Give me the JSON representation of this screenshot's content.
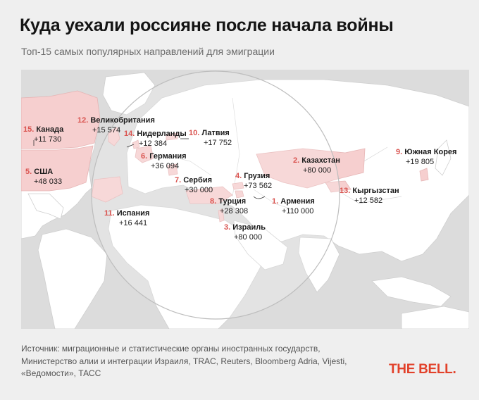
{
  "header": {
    "title": "Куда уехали россияне после начала войны",
    "subtitle": "Топ-15 самых популярных направлений для эмиграции"
  },
  "destinations": [
    {
      "rank": "15.",
      "name": "Канада",
      "count": "+11 730"
    },
    {
      "rank": "12.",
      "name": "Великобритания",
      "count": "+15 574"
    },
    {
      "rank": "14.",
      "name": "Нидерланды",
      "count": "+12 384"
    },
    {
      "rank": "10.",
      "name": "Латвия",
      "count": "+17 752"
    },
    {
      "rank": "6.",
      "name": "Германия",
      "count": "+36 094"
    },
    {
      "rank": "5.",
      "name": "США",
      "count": "+48 033"
    },
    {
      "rank": "7.",
      "name": "Сербия",
      "count": "+30 000"
    },
    {
      "rank": "4.",
      "name": "Грузия",
      "count": "+73 562"
    },
    {
      "rank": "2.",
      "name": "Казахстан",
      "count": "+80 000"
    },
    {
      "rank": "9.",
      "name": "Южная Корея",
      "count": "+19 805"
    },
    {
      "rank": "13.",
      "name": "Кыргызстан",
      "count": "+12 582"
    },
    {
      "rank": "8.",
      "name": "Турция",
      "count": "+28 308"
    },
    {
      "rank": "1.",
      "name": "Армения",
      "count": "+110 000"
    },
    {
      "rank": "11.",
      "name": "Испания",
      "count": "+16 441"
    },
    {
      "rank": "3.",
      "name": "Израиль",
      "count": "+80 000"
    }
  ],
  "footer": {
    "source": "Источник: миграционные и статистические органы иностранных государств, Министерство алии и интеграции Израиля, TRAC, Reuters, Bloomberg Adria, Vijesti, «Ведомости», ТАСС",
    "logo": "THE BELL."
  },
  "colors": {
    "background": "#efefef",
    "land": "#ffffff",
    "water": "#dcdcdc",
    "highlight": "#f6cfcf",
    "rank": "#d9534f",
    "logo": "#e2412a"
  }
}
